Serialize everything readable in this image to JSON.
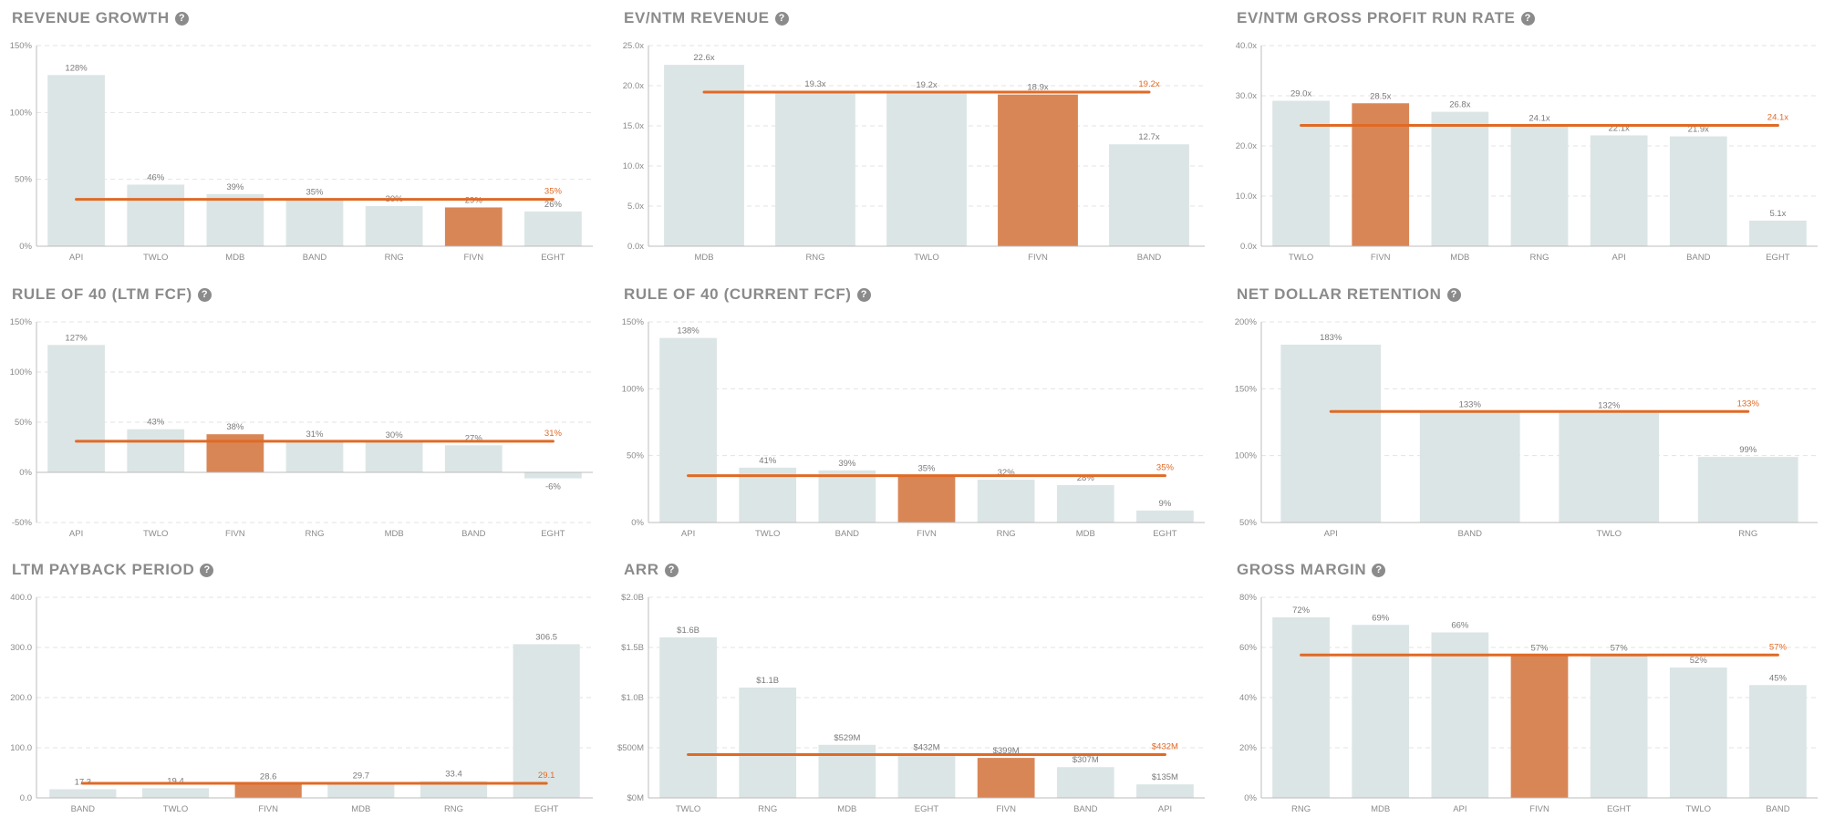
{
  "colors": {
    "bar": "#dce5e5",
    "highlight": "#d98656",
    "median": "#e06a25",
    "median_label": "#e06a25",
    "grid": "#e3e3e3",
    "axis": "#bcbcbc",
    "text": "#8b8b8b",
    "help_icon": "#8b8b8b"
  },
  "highlight_ticker": "FIVN",
  "chart_data": [
    {
      "id": "revenue-growth",
      "title": "REVENUE GROWTH",
      "type": "bar",
      "categories": [
        "API",
        "TWLO",
        "MDB",
        "BAND",
        "RNG",
        "FIVN",
        "EGHT"
      ],
      "values": [
        128,
        46,
        39,
        35,
        30,
        29,
        26
      ],
      "value_labels": [
        "128%",
        "46%",
        "39%",
        "35%",
        "30%",
        "29%",
        "26%"
      ],
      "median": 35,
      "median_label": "35%",
      "ylim": [
        0,
        150
      ],
      "yticks": [
        0,
        50,
        100,
        150
      ],
      "ytick_labels": [
        "0%",
        "50%",
        "100%",
        "150%"
      ]
    },
    {
      "id": "ev-ntm-revenue",
      "title": "EV/NTM REVENUE",
      "type": "bar",
      "categories": [
        "MDB",
        "RNG",
        "TWLO",
        "FIVN",
        "BAND"
      ],
      "values": [
        22.6,
        19.3,
        19.2,
        18.9,
        12.7
      ],
      "value_labels": [
        "22.6x",
        "19.3x",
        "19.2x",
        "18.9x",
        "12.7x"
      ],
      "median": 19.2,
      "median_label": "19.2x",
      "ylim": [
        0,
        25
      ],
      "yticks": [
        0,
        5,
        10,
        15,
        20,
        25
      ],
      "ytick_labels": [
        "0.0x",
        "5.0x",
        "10.0x",
        "15.0x",
        "20.0x",
        "25.0x"
      ]
    },
    {
      "id": "ev-ntm-gross-profit",
      "title": "EV/NTM GROSS PROFIT RUN RATE",
      "type": "bar",
      "categories": [
        "TWLO",
        "FIVN",
        "MDB",
        "RNG",
        "API",
        "BAND",
        "EGHT"
      ],
      "values": [
        29.0,
        28.5,
        26.8,
        24.1,
        22.1,
        21.9,
        5.1
      ],
      "value_labels": [
        "29.0x",
        "28.5x",
        "26.8x",
        "24.1x",
        "22.1x",
        "21.9x",
        "5.1x"
      ],
      "median": 24.1,
      "median_label": "24.1x",
      "ylim": [
        0,
        40
      ],
      "yticks": [
        0,
        10,
        20,
        30,
        40
      ],
      "ytick_labels": [
        "0.0x",
        "10.0x",
        "20.0x",
        "30.0x",
        "40.0x"
      ]
    },
    {
      "id": "rule-of-40-ltm",
      "title": "RULE OF 40 (LTM FCF)",
      "type": "bar",
      "categories": [
        "API",
        "TWLO",
        "FIVN",
        "RNG",
        "MDB",
        "BAND",
        "EGHT"
      ],
      "values": [
        127,
        43,
        38,
        31,
        30,
        27,
        -6
      ],
      "value_labels": [
        "127%",
        "43%",
        "38%",
        "31%",
        "30%",
        "27%",
        "-6%"
      ],
      "median": 31,
      "median_label": "31%",
      "ylim": [
        -50,
        150
      ],
      "yticks": [
        -50,
        0,
        50,
        100,
        150
      ],
      "ytick_labels": [
        "-50%",
        "0%",
        "50%",
        "100%",
        "150%"
      ]
    },
    {
      "id": "rule-of-40-current",
      "title": "RULE OF 40 (CURRENT FCF)",
      "type": "bar",
      "categories": [
        "API",
        "TWLO",
        "BAND",
        "FIVN",
        "RNG",
        "MDB",
        "EGHT"
      ],
      "values": [
        138,
        41,
        39,
        35,
        32,
        28,
        9
      ],
      "value_labels": [
        "138%",
        "41%",
        "39%",
        "35%",
        "32%",
        "28%",
        "9%"
      ],
      "median": 35,
      "median_label": "35%",
      "ylim": [
        0,
        150
      ],
      "yticks": [
        0,
        50,
        100,
        150
      ],
      "ytick_labels": [
        "0%",
        "50%",
        "100%",
        "150%"
      ]
    },
    {
      "id": "net-dollar-retention",
      "title": "NET DOLLAR RETENTION",
      "type": "bar",
      "categories": [
        "API",
        "BAND",
        "TWLO",
        "RNG"
      ],
      "values": [
        183,
        133,
        132,
        99
      ],
      "value_labels": [
        "183%",
        "133%",
        "132%",
        "99%"
      ],
      "median": 133,
      "median_label": "133%",
      "ylim": [
        50,
        200
      ],
      "yticks": [
        50,
        100,
        150,
        200
      ],
      "ytick_labels": [
        "50%",
        "100%",
        "150%",
        "200%"
      ]
    },
    {
      "id": "ltm-payback-period",
      "title": "LTM PAYBACK PERIOD",
      "type": "bar",
      "categories": [
        "BAND",
        "TWLO",
        "FIVN",
        "MDB",
        "RNG",
        "EGHT"
      ],
      "values": [
        17.3,
        19.4,
        28.6,
        29.7,
        33.4,
        306.5
      ],
      "value_labels": [
        "17.3",
        "19.4",
        "28.6",
        "29.7",
        "33.4",
        "306.5"
      ],
      "median": 29.1,
      "median_label": "29.1",
      "ylim": [
        0,
        400
      ],
      "yticks": [
        0,
        100,
        200,
        300,
        400
      ],
      "ytick_labels": [
        "0.0",
        "100.0",
        "200.0",
        "300.0",
        "400.0"
      ]
    },
    {
      "id": "arr",
      "title": "ARR",
      "type": "bar",
      "categories": [
        "TWLO",
        "RNG",
        "MDB",
        "EGHT",
        "FIVN",
        "BAND",
        "API"
      ],
      "values": [
        1.6,
        1.1,
        0.529,
        0.432,
        0.399,
        0.307,
        0.135
      ],
      "value_labels": [
        "$1.6B",
        "$1.1B",
        "$529M",
        "$432M",
        "$399M",
        "$307M",
        "$135M"
      ],
      "median": 0.432,
      "median_label": "$432M",
      "ylim": [
        0,
        2.0
      ],
      "yticks": [
        0,
        0.5,
        1.0,
        1.5,
        2.0
      ],
      "ytick_labels": [
        "$0M",
        "$500M",
        "$1.0B",
        "$1.5B",
        "$2.0B"
      ]
    },
    {
      "id": "gross-margin",
      "title": "GROSS MARGIN",
      "type": "bar",
      "categories": [
        "RNG",
        "MDB",
        "API",
        "FIVN",
        "EGHT",
        "TWLO",
        "BAND"
      ],
      "values": [
        72,
        69,
        66,
        57,
        57,
        52,
        45
      ],
      "value_labels": [
        "72%",
        "69%",
        "66%",
        "57%",
        "57%",
        "52%",
        "45%"
      ],
      "median": 57,
      "median_label": "57%",
      "ylim": [
        0,
        80
      ],
      "yticks": [
        0,
        20,
        40,
        60,
        80
      ],
      "ytick_labels": [
        "0%",
        "20%",
        "40%",
        "60%",
        "80%"
      ]
    }
  ]
}
